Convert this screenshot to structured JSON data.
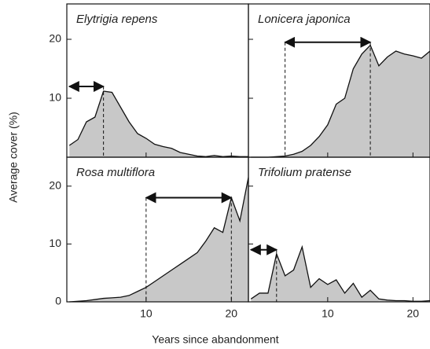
{
  "xlabel": "Years since abandonment",
  "ylabel": "Average cover (%)",
  "chart_data": [
    {
      "type": "area",
      "title": "Elytrigia repens",
      "color": "#c8c8c8",
      "x": [
        1,
        2,
        3,
        4,
        5,
        6,
        7,
        8,
        9,
        10,
        11,
        12,
        13,
        14,
        15,
        16,
        17,
        18,
        19,
        20,
        21,
        22
      ],
      "values": [
        2,
        3,
        6,
        6.8,
        11.2,
        11,
        8.5,
        6,
        4,
        3.2,
        2.2,
        1.8,
        1.5,
        0.8,
        0.5,
        0.2,
        0.1,
        0.3,
        0.1,
        0.2,
        0.1,
        0.1
      ],
      "arrow": {
        "from": 1,
        "to": 5,
        "y": 12,
        "drop": 11.2
      },
      "xlim": [
        0.7,
        22
      ],
      "ylim": [
        0,
        26
      ],
      "xticks": [
        10,
        20
      ],
      "yticks": [
        10,
        20
      ]
    },
    {
      "type": "area",
      "title": "Lonicera japonica",
      "color": "#c8c8c8",
      "x": [
        1,
        2,
        3,
        4,
        5,
        6,
        7,
        8,
        9,
        10,
        11,
        12,
        13,
        14,
        15,
        16,
        17,
        18,
        19,
        20,
        21,
        22
      ],
      "values": [
        0,
        0,
        0,
        0.1,
        0.2,
        0.5,
        1,
        2,
        3.5,
        5.5,
        9,
        10,
        15,
        17.5,
        19,
        15.5,
        17,
        18,
        17.5,
        17.2,
        16.8,
        18
      ],
      "arrow": {
        "from": 5,
        "to": 15,
        "y": 19.5,
        "drop": 19
      },
      "xlim": [
        0.7,
        22
      ],
      "ylim": [
        0,
        26
      ],
      "xticks": [
        10,
        20
      ],
      "yticks": [
        10,
        20
      ]
    },
    {
      "type": "area",
      "title": "Rosa multiflora",
      "color": "#c8c8c8",
      "x": [
        1,
        2,
        3,
        4,
        5,
        6,
        7,
        8,
        9,
        10,
        11,
        12,
        13,
        14,
        15,
        16,
        17,
        18,
        19,
        20,
        21,
        22
      ],
      "values": [
        0,
        0.1,
        0.2,
        0.4,
        0.6,
        0.7,
        0.8,
        1.1,
        1.8,
        2.5,
        3.5,
        4.5,
        5.5,
        6.5,
        7.5,
        8.5,
        10.5,
        12.8,
        12,
        18,
        14,
        21.5
      ],
      "arrow": {
        "from": 10,
        "to": 20,
        "y": 18,
        "drop": 18
      },
      "xlim": [
        0.7,
        22
      ],
      "ylim": [
        0,
        25
      ],
      "xticks": [
        10,
        20
      ],
      "yticks": [
        0,
        10,
        20
      ]
    },
    {
      "type": "area",
      "title": "Trifolium pratense",
      "color": "#c8c8c8",
      "x": [
        1,
        2,
        3,
        4,
        5,
        6,
        7,
        8,
        9,
        10,
        11,
        12,
        13,
        14,
        15,
        16,
        17,
        18,
        19,
        20,
        21,
        22
      ],
      "values": [
        0.5,
        1.5,
        1.5,
        8.3,
        4.5,
        5.5,
        9.5,
        2.5,
        4,
        3,
        3.8,
        1.5,
        3.2,
        0.8,
        2,
        0.5,
        0.3,
        0.2,
        0.2,
        0.1,
        0.1,
        0.2
      ],
      "arrow": {
        "from": 1,
        "to": 4,
        "y": 9,
        "drop": 8.3
      },
      "xlim": [
        0.7,
        22
      ],
      "ylim": [
        0,
        25
      ],
      "xticks": [
        10,
        20
      ],
      "yticks": [
        0,
        10,
        20
      ]
    }
  ]
}
